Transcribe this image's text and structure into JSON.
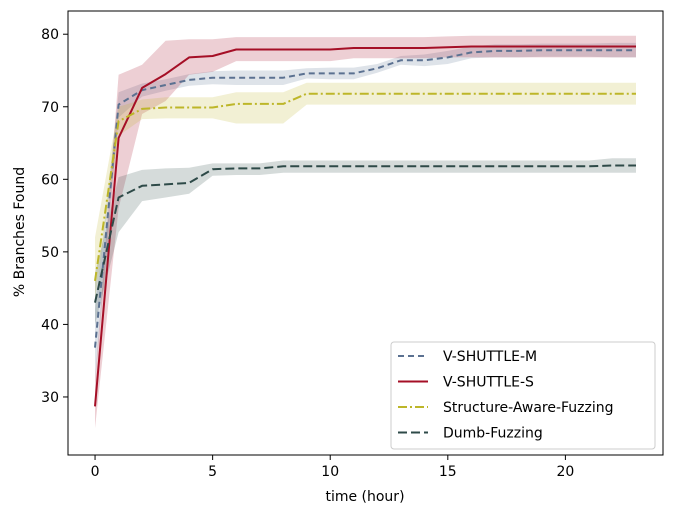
{
  "chart_data": {
    "type": "line",
    "title": "",
    "xlabel": "time (hour)",
    "ylabel": "% Branches Found",
    "xlim": [
      -1.15,
      24.15
    ],
    "ylim": [
      22,
      83.2
    ],
    "xticks": [
      0,
      5,
      10,
      15,
      20
    ],
    "yticks": [
      30,
      40,
      50,
      60,
      70,
      80
    ],
    "legend_position": "lower-right",
    "series": [
      {
        "name": "V-SHUTTLE-M",
        "color": "#5b7191",
        "dash": "6,4",
        "x": [
          0,
          1,
          2,
          3,
          4,
          5,
          6,
          7,
          8,
          9,
          10,
          11,
          12,
          13,
          14,
          15,
          16,
          17,
          18,
          19,
          20,
          21,
          22,
          23
        ],
        "y": [
          36.8,
          70.3,
          72.3,
          73.0,
          73.7,
          74.0,
          74.0,
          74.0,
          74.0,
          74.6,
          74.6,
          74.6,
          75.3,
          76.4,
          76.4,
          76.8,
          77.5,
          77.7,
          77.7,
          77.8,
          77.8,
          77.8,
          77.8,
          77.8
        ],
        "upper": [
          42.0,
          72.0,
          73.2,
          73.8,
          74.5,
          74.9,
          75.0,
          75.0,
          75.0,
          75.3,
          75.4,
          75.4,
          75.9,
          77.0,
          77.2,
          77.7,
          78.3,
          78.6,
          78.6,
          78.7,
          78.7,
          78.7,
          78.8,
          78.8
        ],
        "lower": [
          32.0,
          68.5,
          71.4,
          72.2,
          72.9,
          73.1,
          73.0,
          73.0,
          73.0,
          73.9,
          73.8,
          73.8,
          74.7,
          75.8,
          75.6,
          75.9,
          76.7,
          76.8,
          76.8,
          76.9,
          76.9,
          76.9,
          76.8,
          76.8
        ]
      },
      {
        "name": "V-SHUTTLE-S",
        "color": "#a50f26",
        "dash": "",
        "x": [
          0,
          1,
          2,
          3,
          4,
          5,
          6,
          7,
          8,
          9,
          10,
          11,
          12,
          13,
          14,
          15,
          16,
          17,
          18,
          19,
          20,
          21,
          22,
          23
        ],
        "y": [
          28.7,
          65.7,
          72.6,
          74.5,
          76.8,
          77.0,
          77.9,
          77.9,
          77.9,
          77.9,
          77.9,
          78.1,
          78.1,
          78.1,
          78.1,
          78.2,
          78.3,
          78.3,
          78.3,
          78.3,
          78.3,
          78.3,
          78.3,
          78.3
        ],
        "upper": [
          32.3,
          74.4,
          75.8,
          79.1,
          79.3,
          79.3,
          79.6,
          79.6,
          79.6,
          79.6,
          79.6,
          79.6,
          79.6,
          79.6,
          79.6,
          79.7,
          79.8,
          79.8,
          79.8,
          79.8,
          79.8,
          79.8,
          79.8,
          79.8
        ],
        "lower": [
          25.7,
          56.0,
          69.0,
          70.8,
          74.4,
          74.8,
          76.3,
          76.3,
          76.3,
          76.3,
          76.3,
          76.7,
          76.7,
          76.7,
          76.7,
          76.8,
          76.8,
          76.8,
          76.8,
          76.8,
          76.8,
          76.8,
          76.8,
          76.8
        ]
      },
      {
        "name": "Structure-Aware-Fuzzing",
        "color": "#bdb629",
        "dash": "9,3,2,3",
        "x": [
          0,
          1,
          2,
          3,
          4,
          5,
          6,
          7,
          8,
          9,
          10,
          11,
          12,
          13,
          14,
          15,
          16,
          17,
          18,
          19,
          20,
          21,
          22,
          23
        ],
        "y": [
          46.0,
          68.0,
          69.7,
          69.9,
          69.9,
          69.9,
          70.4,
          70.4,
          70.4,
          71.8,
          71.8,
          71.8,
          71.8,
          71.8,
          71.8,
          71.8,
          71.8,
          71.8,
          71.8,
          71.8,
          71.8,
          71.8,
          71.8,
          71.8
        ],
        "upper": [
          52.0,
          70.0,
          71.0,
          71.3,
          71.3,
          71.3,
          72.0,
          72.0,
          72.0,
          73.3,
          73.3,
          73.3,
          73.3,
          73.3,
          73.3,
          73.3,
          73.3,
          73.3,
          73.3,
          73.3,
          73.3,
          73.3,
          73.3,
          73.3
        ],
        "lower": [
          43.5,
          66.0,
          68.3,
          68.4,
          68.4,
          68.4,
          67.7,
          67.7,
          67.7,
          70.3,
          70.3,
          70.3,
          70.3,
          70.3,
          70.3,
          70.3,
          70.3,
          70.3,
          70.3,
          70.3,
          70.3,
          70.3,
          70.3,
          70.3
        ]
      },
      {
        "name": "Dumb-Fuzzing",
        "color": "#2e4a48",
        "dash": "9,4",
        "x": [
          0,
          1,
          2,
          3,
          4,
          5,
          6,
          7,
          8,
          9,
          10,
          11,
          12,
          13,
          14,
          15,
          16,
          17,
          18,
          19,
          20,
          21,
          22,
          23
        ],
        "y": [
          43.0,
          57.5,
          59.1,
          59.3,
          59.5,
          61.4,
          61.5,
          61.5,
          61.8,
          61.8,
          61.8,
          61.8,
          61.8,
          61.8,
          61.8,
          61.8,
          61.8,
          61.8,
          61.8,
          61.8,
          61.8,
          61.8,
          61.9,
          61.9
        ],
        "upper": [
          47.0,
          60.3,
          61.3,
          61.5,
          61.6,
          62.2,
          62.2,
          62.2,
          62.6,
          62.6,
          62.6,
          62.6,
          62.6,
          62.6,
          62.6,
          62.6,
          62.6,
          62.6,
          62.6,
          62.6,
          62.6,
          62.6,
          62.9,
          62.9
        ],
        "lower": [
          40.0,
          52.7,
          57.0,
          57.5,
          58.0,
          60.5,
          60.6,
          60.6,
          60.9,
          60.9,
          60.9,
          60.9,
          60.9,
          60.9,
          60.9,
          60.9,
          60.9,
          60.9,
          60.9,
          60.9,
          60.9,
          60.9,
          60.9,
          60.9
        ]
      }
    ]
  }
}
